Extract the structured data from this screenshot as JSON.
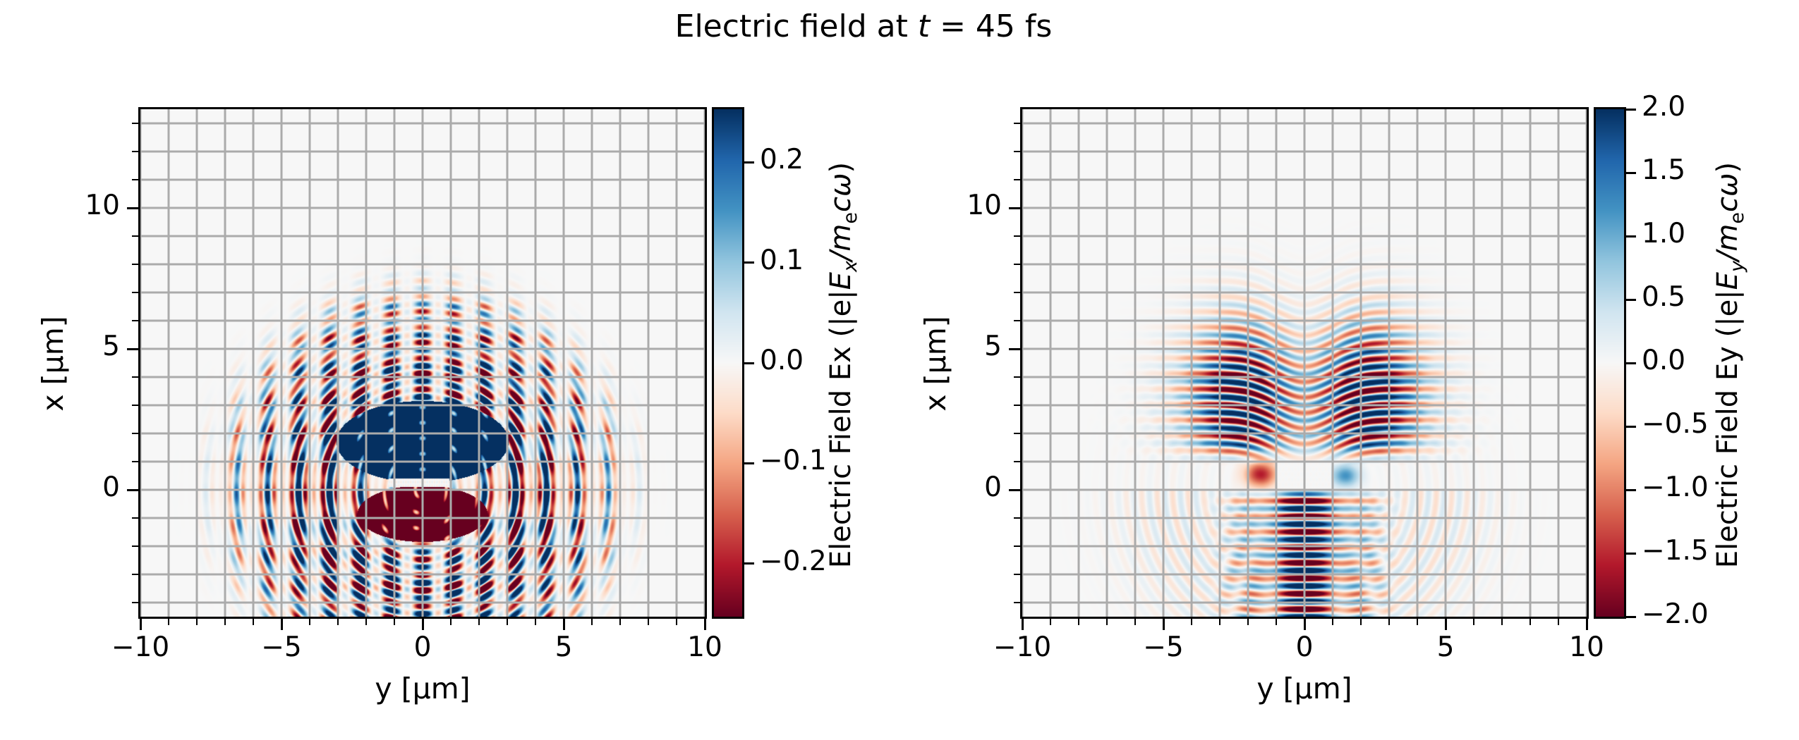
{
  "title": {
    "pre": "Electric field at ",
    "t_var": "t",
    "post": " = 45 fs"
  },
  "colormap_name": "RdBu",
  "colormap": [
    "#67001f",
    "#b2182b",
    "#d6604d",
    "#f4a582",
    "#fddbc7",
    "#f7f7f7",
    "#d1e5f0",
    "#92c5de",
    "#4393c3",
    "#2166ac",
    "#053061"
  ],
  "chart_data": [
    {
      "type": "heatmap",
      "field_name": "Ex",
      "xlabel": "y [μm]",
      "ylabel": "x [μm]",
      "xlim": [
        -10,
        10
      ],
      "ylim": [
        -4.5,
        13.5
      ],
      "x_ticks": {
        "values": [
          -10,
          -5,
          0,
          5,
          10
        ],
        "labels": [
          "−10",
          "−5",
          "0",
          "5",
          "10"
        ]
      },
      "y_ticks": {
        "values": [
          0,
          5,
          10
        ],
        "labels": [
          "0",
          "5",
          "10"
        ]
      },
      "minor_tick_step_um": 1,
      "grid_step_um": 1,
      "vmin": -0.253,
      "vmax": 0.253,
      "colorbar": {
        "ticks": {
          "values": [
            0.2,
            0.1,
            0.0,
            -0.1,
            -0.2
          ],
          "labels": [
            "0.2",
            "0.1",
            "0.0",
            "−0.1",
            "−0.2"
          ]
        },
        "label": {
          "pre": "Electric Field Ex (|e|",
          "E": "E",
          "Esub": "x",
          "mid": "/m",
          "msub": "e",
          "tail": "cω",
          "close": ")"
        }
      },
      "model": {
        "kind": "scattered-rings",
        "wavelength_um": 0.55,
        "ring_center_um": [
          0,
          0
        ],
        "ring_peak_radius_um": 3.6,
        "ring_sigma_um": 2.0,
        "outer_ring_radius_um": 6.3,
        "outer_ring_sigma_um": 1.05,
        "dash_period_um": 1.1,
        "core_blue": {
          "cx": 1.7,
          "rx": 1.45,
          "ry": 3.05,
          "level": 0.45
        },
        "core_red": {
          "cx": -0.85,
          "rx": 1.0,
          "ry": 2.3,
          "level": -0.45
        },
        "white_strip": {
          "x0": 0.1,
          "x1": 0.4,
          "y0": -1.2,
          "y1": 0.95
        }
      }
    },
    {
      "type": "heatmap",
      "field_name": "Ey",
      "xlabel": "y [μm]",
      "ylabel": "x [μm]",
      "xlim": [
        -10,
        10
      ],
      "ylim": [
        -4.5,
        13.5
      ],
      "x_ticks": {
        "values": [
          -10,
          -5,
          0,
          5,
          10
        ],
        "labels": [
          "−10",
          "−5",
          "0",
          "5",
          "10"
        ]
      },
      "y_ticks": {
        "values": [
          0,
          5,
          10
        ],
        "labels": [
          "0",
          "5",
          "10"
        ]
      },
      "minor_tick_step_um": 1,
      "grid_step_um": 1,
      "vmin": -2.0,
      "vmax": 2.0,
      "colorbar": {
        "ticks": {
          "values": [
            2.0,
            1.5,
            1.0,
            0.5,
            0.0,
            -0.5,
            -1.0,
            -1.5,
            -2.0
          ],
          "labels": [
            "2.0",
            "1.5",
            "1.0",
            "0.5",
            "0.0",
            "−0.5",
            "−1.0",
            "−1.5",
            "−2.0"
          ]
        },
        "label": {
          "pre": "Electric Field Ey (|e|",
          "E": "E",
          "Esub": "y",
          "mid": "/m",
          "msub": "e",
          "tail": "cω",
          "close": ")"
        }
      },
      "model": {
        "kind": "beam-and-lobes",
        "wavelength_um": 0.55,
        "beam_width_um": 1.05,
        "beam_amp": 3.2,
        "lobe_center_y_um": 2.15,
        "lobe_sigma_um": 1.55,
        "lobe_amp": 2.7,
        "lobe_peak_x_um": 3.2,
        "bend_um": 0.85,
        "ring_radius_um": 4.6,
        "ring_sigma_um": 2.1,
        "ring_amp": 0.34,
        "white_box": {
          "x0": 0.05,
          "x1": 1.0,
          "y0": -1.0,
          "y1": 0.95
        }
      }
    }
  ]
}
